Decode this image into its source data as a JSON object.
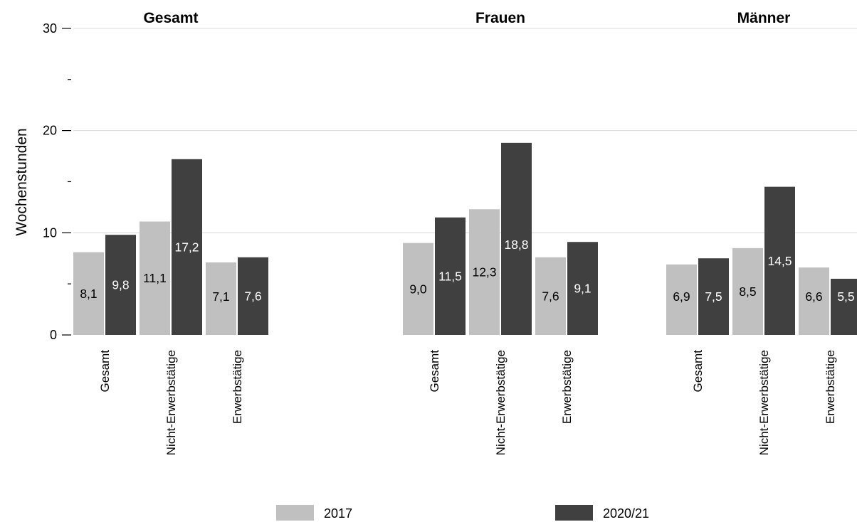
{
  "chart_data": {
    "type": "bar",
    "ylabel": "Wochenstunden",
    "ylim": [
      0,
      30
    ],
    "yticks": [
      {
        "value": 0,
        "label": "0"
      },
      {
        "value": 10,
        "label": "10"
      },
      {
        "value": 20,
        "label": "20"
      },
      {
        "value": 30,
        "label": "30"
      }
    ],
    "yminor": [
      5,
      15,
      25
    ],
    "grid": true,
    "legend_position": "bottom",
    "categories": [
      "Gesamt",
      "Nicht-Erwerbstätige",
      "Erwerbstätige"
    ],
    "series": [
      {
        "name": "2017",
        "color": "#c0c0c0",
        "label_color": "#000000"
      },
      {
        "name": "2020/21",
        "color": "#404040",
        "label_color": "#ffffff"
      }
    ],
    "panels": [
      {
        "title": "Gesamt",
        "values": [
          [
            8.1,
            11.1,
            7.1
          ],
          [
            9.8,
            17.2,
            7.6
          ]
        ],
        "labels": [
          [
            "8,1",
            "11,1",
            "7,1"
          ],
          [
            "9,8",
            "17,2",
            "7,6"
          ]
        ]
      },
      {
        "title": "Frauen",
        "values": [
          [
            9.0,
            12.3,
            7.6
          ],
          [
            11.5,
            18.8,
            9.1
          ]
        ],
        "labels": [
          [
            "9,0",
            "12,3",
            "7,6"
          ],
          [
            "11,5",
            "18,8",
            "9,1"
          ]
        ]
      },
      {
        "title": "Männer",
        "values": [
          [
            6.9,
            8.5,
            6.6
          ],
          [
            7.5,
            14.5,
            5.5
          ]
        ],
        "labels": [
          [
            "6,9",
            "8,5",
            "6,6"
          ],
          [
            "7,5",
            "14,5",
            "5,5"
          ]
        ]
      }
    ]
  }
}
